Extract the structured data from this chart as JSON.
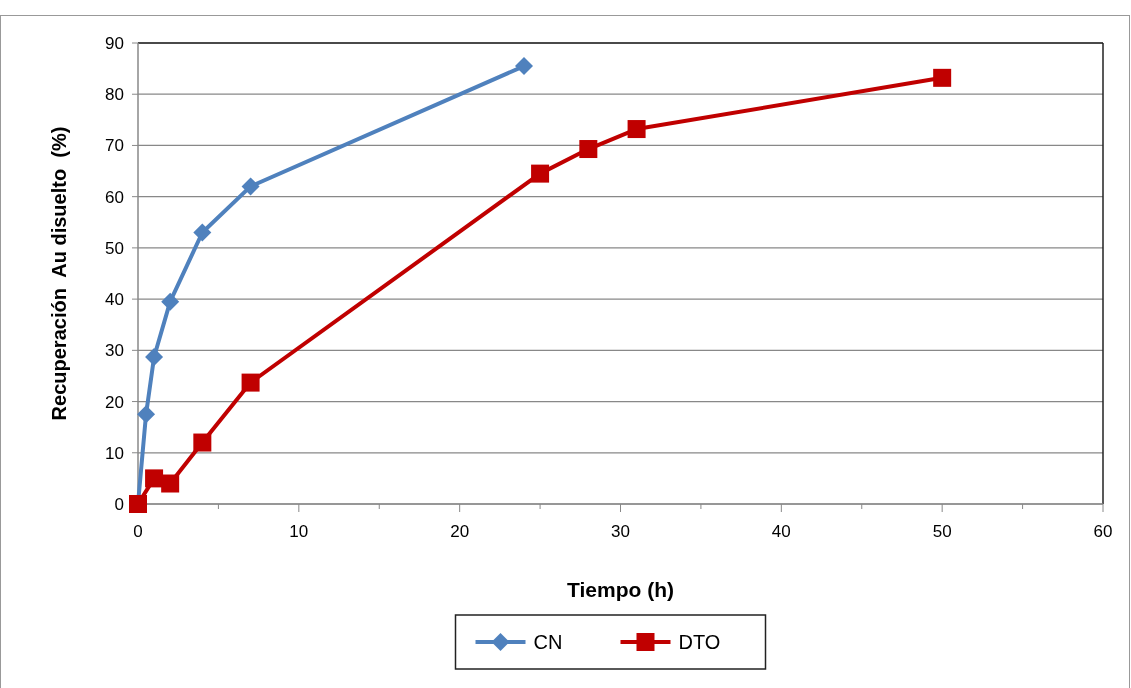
{
  "chart_data": {
    "type": "line",
    "xlabel": "Tiempo (h)",
    "ylabel": "Recuperación  Au disuelto  (%)",
    "xlim": [
      0,
      60
    ],
    "ylim": [
      0,
      90
    ],
    "xticks": [
      0,
      {
        "value": 5,
        "label": null
      },
      10,
      {
        "value": 15,
        "label": null
      },
      20,
      {
        "value": 25,
        "label": null
      },
      30,
      {
        "value": 35,
        "label": null
      },
      40,
      {
        "value": 45,
        "label": null
      },
      50,
      {
        "value": 55,
        "label": null
      },
      60
    ],
    "yticks": [
      0,
      10,
      20,
      30,
      40,
      50,
      60,
      70,
      80,
      90
    ],
    "grid": "y",
    "legend": "bottom",
    "series": [
      {
        "name": "CN",
        "color": "#4f81bd",
        "marker": "diamond",
        "x": [
          0,
          0.5,
          1,
          2,
          4,
          7,
          24
        ],
        "values": [
          0,
          17.5,
          28.7,
          39.5,
          53,
          62,
          85.5
        ]
      },
      {
        "name": "DTO",
        "color": "#c00000",
        "marker": "square",
        "x": [
          0,
          1,
          2,
          4,
          7,
          25,
          28,
          31,
          50
        ],
        "values": [
          0,
          5,
          4,
          12,
          23.7,
          64.5,
          69.3,
          73.2,
          83.2
        ]
      }
    ]
  }
}
